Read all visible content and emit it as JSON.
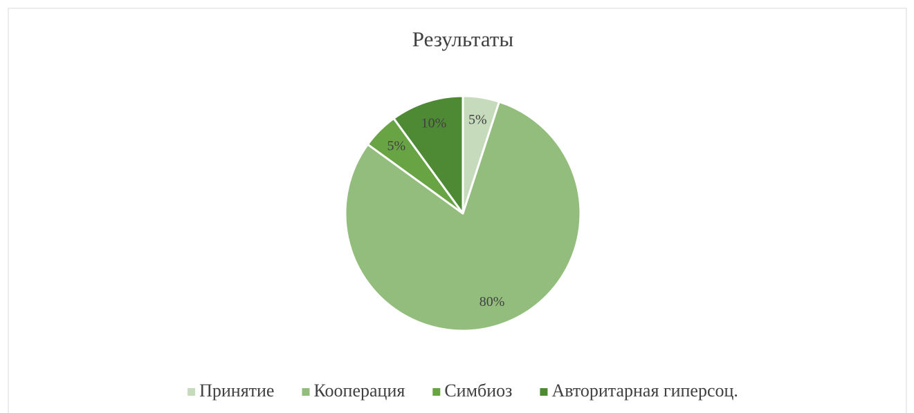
{
  "chart_data": {
    "type": "pie",
    "title": "Результаты",
    "categories": [
      "Принятие",
      "Кооперация",
      "Симбиоз",
      "Авторитарная гиперсоц."
    ],
    "values": [
      5,
      80,
      5,
      10
    ],
    "value_labels": [
      "5%",
      "80%",
      "5%",
      "10%"
    ],
    "colors": [
      "#c5dbbb",
      "#93bd7c",
      "#68a443",
      "#4e8a33"
    ],
    "legend": "bottom"
  }
}
